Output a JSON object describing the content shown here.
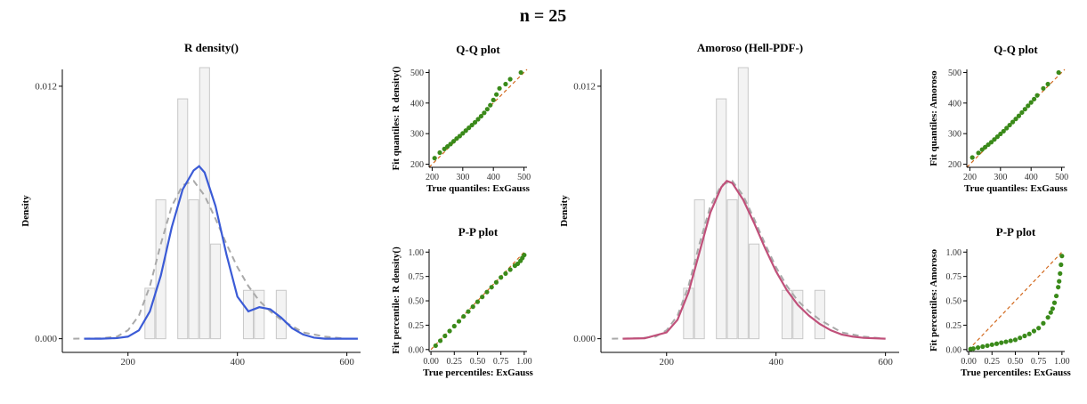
{
  "figure": {
    "title": "n = 25"
  },
  "colors": {
    "histogram_fill": "#f3f3f3",
    "histogram_stroke": "#c8c8c8",
    "true_density": "#a9a9a9",
    "rdensity_fit": "#3b5bd6",
    "amoroso_fit": "#c0507a",
    "qq_points": "#3a8a1a",
    "reference_line": "#d2691e"
  },
  "chart_data": [
    {
      "id": "rdensity",
      "type": "histogram-density",
      "title": "R density()",
      "xlabel": "",
      "ylabel": "Density",
      "xlim": [
        80,
        625
      ],
      "ylim": [
        -0.00065,
        0.0128
      ],
      "xticks": [
        200,
        400,
        600
      ],
      "yticks": [
        0.0,
        0.012
      ],
      "ytick_labels": [
        "0.000",
        "0.012"
      ],
      "histogram": {
        "bins": [
          [
            240,
            0.0024
          ],
          [
            260,
            0.0066
          ],
          [
            280,
            0.0
          ],
          [
            300,
            0.0114
          ],
          [
            320,
            0.0066
          ],
          [
            340,
            0.015
          ],
          [
            360,
            0.0045
          ],
          [
            380,
            0.0
          ],
          [
            400,
            0.0
          ],
          [
            420,
            0.0023
          ],
          [
            440,
            0.0023
          ],
          [
            460,
            0.0
          ],
          [
            480,
            0.0023
          ]
        ],
        "binwidth": 18
      },
      "true_density": {
        "x": [
          100,
          150,
          180,
          200,
          220,
          240,
          260,
          280,
          300,
          320,
          340,
          360,
          380,
          400,
          420,
          440,
          460,
          480,
          500,
          520,
          540,
          560,
          600
        ],
        "y": [
          0.0,
          2e-05,
          0.0001,
          0.0004,
          0.0011,
          0.0025,
          0.0045,
          0.0063,
          0.0073,
          0.0075,
          0.0068,
          0.0057,
          0.0045,
          0.0034,
          0.0025,
          0.0018,
          0.0013,
          0.0009,
          0.0006,
          0.0003,
          0.0002,
          0.0001,
          0.0
        ]
      },
      "fit": {
        "name": "R density()",
        "x": [
          120,
          150,
          180,
          200,
          220,
          240,
          260,
          280,
          300,
          320,
          330,
          340,
          360,
          380,
          400,
          420,
          440,
          460,
          480,
          500,
          520,
          540,
          560,
          600,
          620
        ],
        "y": [
          0.0,
          0.0,
          3e-05,
          0.0001,
          0.0004,
          0.0013,
          0.003,
          0.0053,
          0.0071,
          0.008,
          0.0082,
          0.0079,
          0.0063,
          0.004,
          0.002,
          0.0013,
          0.0015,
          0.0014,
          0.001,
          0.0005,
          0.0002,
          5e-05,
          0.0,
          0.0,
          0.0
        ]
      }
    },
    {
      "id": "rdensity-qq",
      "type": "scatter",
      "title": "Q-Q plot",
      "xlabel": "True quantiles: ExGauss",
      "ylabel": "Fit quantiles: R density()",
      "xlim": [
        190,
        510
      ],
      "ylim": [
        190,
        510
      ],
      "xticks": [
        200,
        300,
        400,
        500
      ],
      "yticks": [
        200,
        300,
        400,
        500
      ],
      "reference_line": [
        [
          190,
          190
        ],
        [
          510,
          510
        ]
      ],
      "points": {
        "x": [
          208,
          225,
          240,
          250,
          260,
          270,
          280,
          290,
          300,
          310,
          320,
          330,
          340,
          350,
          360,
          370,
          380,
          390,
          400,
          410,
          420,
          440,
          455,
          490
        ],
        "y": [
          220,
          238,
          250,
          258,
          266,
          275,
          284,
          292,
          301,
          310,
          319,
          328,
          337,
          347,
          357,
          368,
          380,
          393,
          410,
          428,
          448,
          462,
          478,
          500
        ]
      }
    },
    {
      "id": "rdensity-pp",
      "type": "scatter",
      "title": "P-P plot",
      "xlabel": "True percentiles: ExGauss",
      "ylabel": "Fit percentile: R density()",
      "xlim": [
        -0.02,
        1.03
      ],
      "ylim": [
        -0.02,
        1.03
      ],
      "xticks": [
        0.0,
        0.25,
        0.5,
        0.75,
        1.0
      ],
      "yticks": [
        0.0,
        0.25,
        0.5,
        0.75,
        1.0
      ],
      "tick_labels": [
        "0.00",
        "0.25",
        "0.50",
        "0.75",
        "1.00"
      ],
      "reference_line": [
        [
          0,
          0
        ],
        [
          1,
          1
        ]
      ],
      "points": {
        "x": [
          0.05,
          0.1,
          0.15,
          0.2,
          0.25,
          0.3,
          0.35,
          0.4,
          0.45,
          0.5,
          0.55,
          0.6,
          0.65,
          0.7,
          0.75,
          0.8,
          0.85,
          0.9,
          0.93,
          0.96,
          0.98,
          1.0
        ],
        "y": [
          0.04,
          0.09,
          0.14,
          0.19,
          0.24,
          0.29,
          0.34,
          0.39,
          0.44,
          0.49,
          0.54,
          0.59,
          0.64,
          0.69,
          0.74,
          0.78,
          0.82,
          0.86,
          0.88,
          0.91,
          0.94,
          0.97
        ]
      }
    },
    {
      "id": "amoroso",
      "type": "histogram-density",
      "title": "Amoroso (Hell-PDF-)",
      "xlabel": "",
      "ylabel": "Density",
      "xlim": [
        80,
        625
      ],
      "ylim": [
        -0.00065,
        0.0128
      ],
      "xticks": [
        200,
        400,
        600
      ],
      "yticks": [
        0.0,
        0.012
      ],
      "ytick_labels": [
        "0.000",
        "0.012"
      ],
      "histogram": {
        "bins": [
          [
            240,
            0.0024
          ],
          [
            260,
            0.0066
          ],
          [
            280,
            0.0
          ],
          [
            300,
            0.0114
          ],
          [
            320,
            0.0066
          ],
          [
            340,
            0.015
          ],
          [
            360,
            0.0045
          ],
          [
            380,
            0.0
          ],
          [
            400,
            0.0
          ],
          [
            420,
            0.0023
          ],
          [
            440,
            0.0023
          ],
          [
            460,
            0.0
          ],
          [
            480,
            0.0023
          ]
        ],
        "binwidth": 18
      },
      "true_density": {
        "x": [
          100,
          150,
          180,
          200,
          220,
          240,
          260,
          280,
          300,
          320,
          340,
          360,
          380,
          400,
          420,
          440,
          460,
          480,
          500,
          520,
          540,
          560,
          600
        ],
        "y": [
          0.0,
          2e-05,
          0.0001,
          0.0004,
          0.0011,
          0.0025,
          0.0045,
          0.0063,
          0.0073,
          0.0075,
          0.0068,
          0.0057,
          0.0045,
          0.0034,
          0.0025,
          0.0018,
          0.0013,
          0.0009,
          0.0006,
          0.0003,
          0.0002,
          0.0001,
          0.0
        ]
      },
      "fit": {
        "name": "Amoroso (Hell-PDF-)",
        "x": [
          120,
          160,
          200,
          220,
          240,
          260,
          280,
          300,
          310,
          320,
          340,
          360,
          380,
          400,
          420,
          440,
          460,
          480,
          500,
          520,
          540,
          560,
          600
        ],
        "y": [
          0.0,
          2e-05,
          0.0003,
          0.0009,
          0.0022,
          0.0041,
          0.006,
          0.0072,
          0.0075,
          0.0074,
          0.0066,
          0.0055,
          0.0043,
          0.0032,
          0.0023,
          0.0016,
          0.0011,
          0.0007,
          0.0004,
          0.0002,
          0.0001,
          4e-05,
          0.0
        ]
      }
    },
    {
      "id": "amoroso-qq",
      "type": "scatter",
      "title": "Q-Q plot",
      "xlabel": "True quantiles: ExGauss",
      "ylabel": "Fit quantiles: Amoroso",
      "xlim": [
        190,
        510
      ],
      "ylim": [
        190,
        510
      ],
      "xticks": [
        200,
        300,
        400,
        500
      ],
      "yticks": [
        200,
        300,
        400,
        500
      ],
      "reference_line": [
        [
          190,
          190
        ],
        [
          510,
          510
        ]
      ],
      "points": {
        "x": [
          208,
          228,
          240,
          250,
          260,
          270,
          280,
          290,
          300,
          310,
          320,
          330,
          340,
          350,
          360,
          370,
          380,
          390,
          400,
          410,
          420,
          440,
          455,
          490
        ],
        "y": [
          222,
          237,
          248,
          256,
          264,
          272,
          281,
          290,
          299,
          308,
          318,
          328,
          338,
          348,
          358,
          369,
          380,
          391,
          402,
          413,
          425,
          448,
          462,
          500
        ]
      }
    },
    {
      "id": "amoroso-pp",
      "type": "scatter",
      "title": "P-P plot",
      "xlabel": "True percentiles: ExGauss",
      "ylabel": "Fit percentiles: Amoroso",
      "xlim": [
        -0.02,
        1.03
      ],
      "ylim": [
        -0.02,
        1.03
      ],
      "xticks": [
        0.0,
        0.25,
        0.5,
        0.75,
        1.0
      ],
      "yticks": [
        0.0,
        0.25,
        0.5,
        0.75,
        1.0
      ],
      "tick_labels": [
        "0.00",
        "0.25",
        "0.50",
        "0.75",
        "1.00"
      ],
      "reference_line": [
        [
          0,
          0
        ],
        [
          1,
          1
        ]
      ],
      "points": {
        "x": [
          0.02,
          0.05,
          0.1,
          0.15,
          0.2,
          0.25,
          0.3,
          0.35,
          0.4,
          0.45,
          0.5,
          0.55,
          0.6,
          0.65,
          0.7,
          0.75,
          0.8,
          0.85,
          0.88,
          0.9,
          0.92,
          0.94,
          0.96,
          0.97,
          0.98,
          0.99,
          1.0
        ],
        "y": [
          0.005,
          0.01,
          0.02,
          0.03,
          0.04,
          0.05,
          0.06,
          0.07,
          0.08,
          0.09,
          0.1,
          0.12,
          0.14,
          0.16,
          0.19,
          0.22,
          0.27,
          0.33,
          0.38,
          0.42,
          0.48,
          0.55,
          0.64,
          0.7,
          0.78,
          0.87,
          0.96
        ]
      }
    }
  ]
}
